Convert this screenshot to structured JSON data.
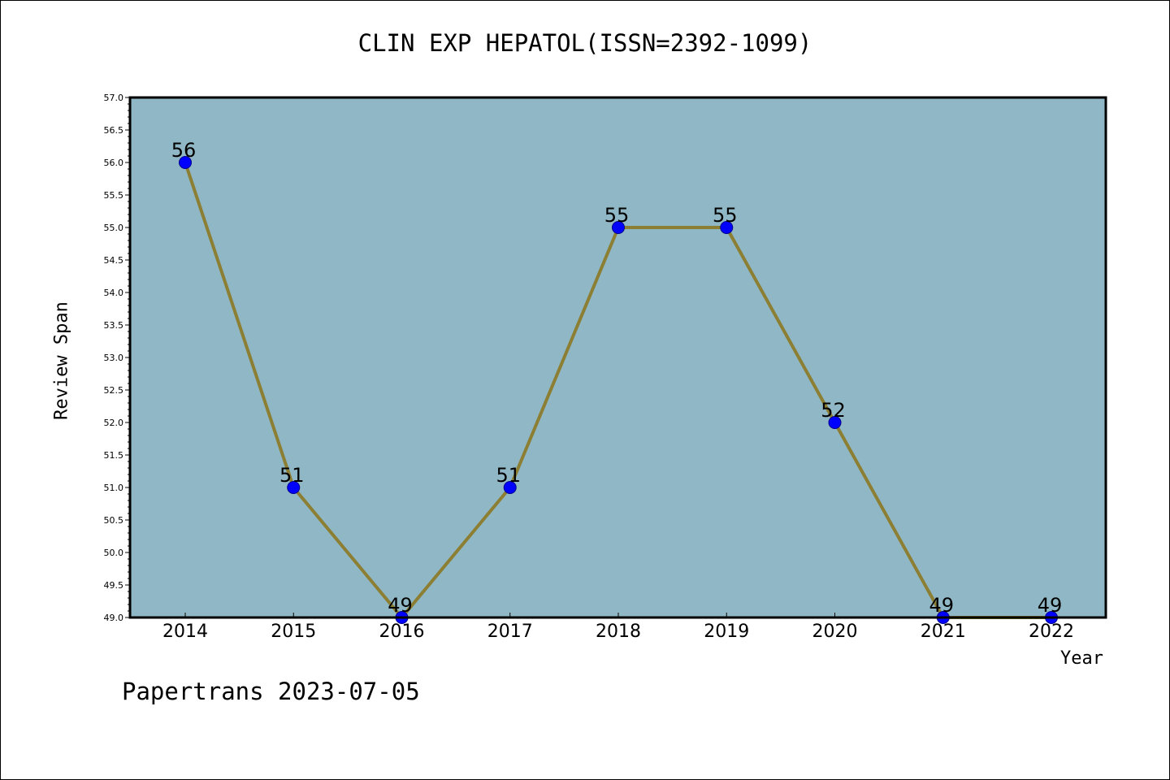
{
  "chart_data": {
    "type": "line",
    "title": "CLIN EXP HEPATOL(ISSN=2392-1099)",
    "xlabel": "Year",
    "ylabel": "Review Span",
    "categories": [
      "2014",
      "2015",
      "2016",
      "2017",
      "2018",
      "2019",
      "2020",
      "2021",
      "2022"
    ],
    "values": [
      56,
      51,
      49,
      51,
      55,
      55,
      52,
      49,
      49
    ],
    "data_labels": [
      "56",
      "51",
      "49",
      "51",
      "55",
      "55",
      "52",
      "49",
      "49"
    ],
    "ylim": [
      49.0,
      57.0
    ],
    "yticks": [
      "49.0",
      "49.5",
      "50.0",
      "50.5",
      "51.0",
      "51.5",
      "52.0",
      "52.5",
      "53.0",
      "53.5",
      "54.0",
      "54.5",
      "55.0",
      "55.5",
      "56.0",
      "56.5",
      "57.0"
    ],
    "ytick_step": 0.5,
    "y_minor_step": 0.1,
    "grid": false,
    "legend": "none",
    "colors": {
      "plot_background": "#8fb7c5",
      "line": "#8c7f33",
      "marker_fill": "#0000ff",
      "marker_edge": "#00008b",
      "axis": "#000000"
    }
  },
  "footer": {
    "text": "Papertrans 2023-07-05"
  }
}
